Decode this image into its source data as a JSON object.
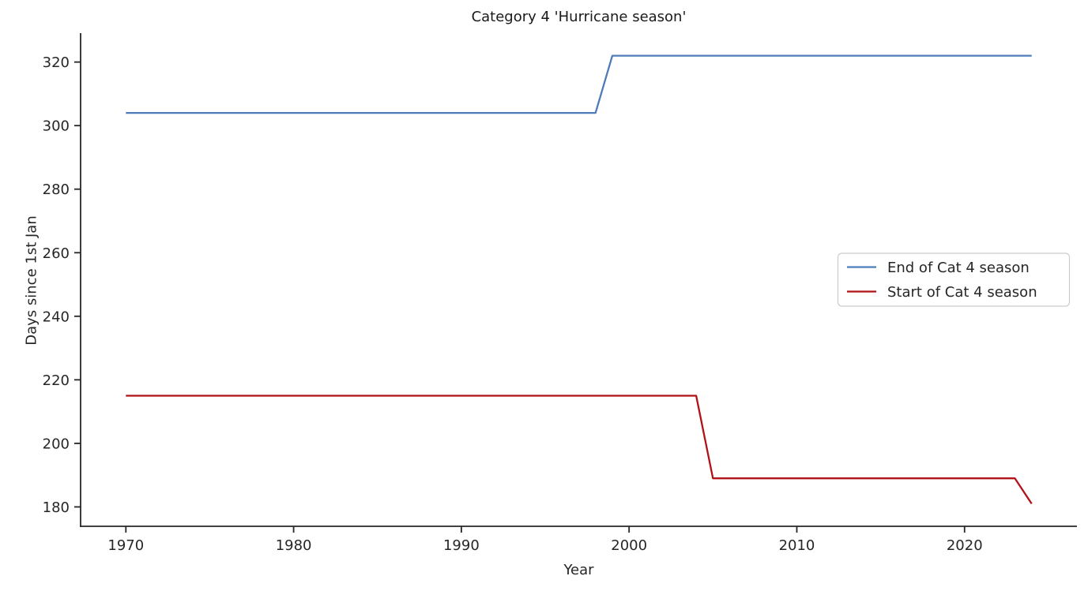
{
  "figure": {
    "background": "#ffffff",
    "axis_color": "#262626",
    "text_color": "#262626",
    "legend_border_color": "#cccccc",
    "legend_background": "#ffffff"
  },
  "chart_data": {
    "type": "line",
    "title": "Category 4 'Hurricane season'",
    "xlabel": "Year",
    "ylabel": "Days since 1st Jan",
    "xlim": [
      1967.3,
      2026.7
    ],
    "ylim": [
      173.9,
      329.1
    ],
    "x_ticks": [
      1970,
      1980,
      1990,
      2000,
      2010,
      2020
    ],
    "y_ticks": [
      180,
      200,
      220,
      240,
      260,
      280,
      300,
      320
    ],
    "grid": false,
    "legend_position": "center right",
    "series": [
      {
        "name": "End of Cat 4 season",
        "color": "#4d7cb8",
        "points": [
          [
            1970,
            304
          ],
          [
            1998,
            304
          ],
          [
            1999,
            322
          ],
          [
            2024,
            322
          ]
        ]
      },
      {
        "name": "Start of Cat 4 season",
        "color": "#b01217",
        "points": [
          [
            1970,
            215
          ],
          [
            2004,
            215
          ],
          [
            2005,
            189
          ],
          [
            2023,
            189
          ],
          [
            2024,
            181
          ]
        ]
      }
    ]
  }
}
